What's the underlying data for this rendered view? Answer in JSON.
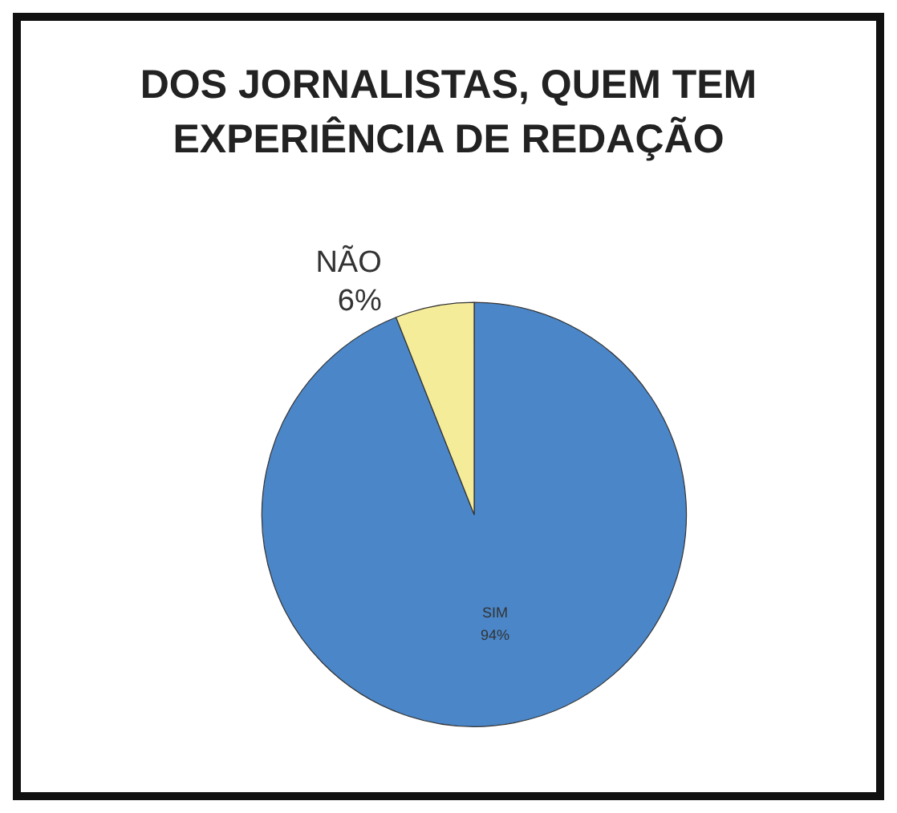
{
  "chart_data": {
    "type": "pie",
    "title": "DOS JORNALISTAS, QUEM TEM\nEXPERIÊNCIA DE REDAÇÃO",
    "categories": [
      "SIM",
      "NÃO"
    ],
    "values": [
      94,
      6
    ],
    "colors": [
      "#4a86c8",
      "#f5ec9a"
    ],
    "value_labels": [
      "94%",
      "6%"
    ],
    "legend": false
  }
}
